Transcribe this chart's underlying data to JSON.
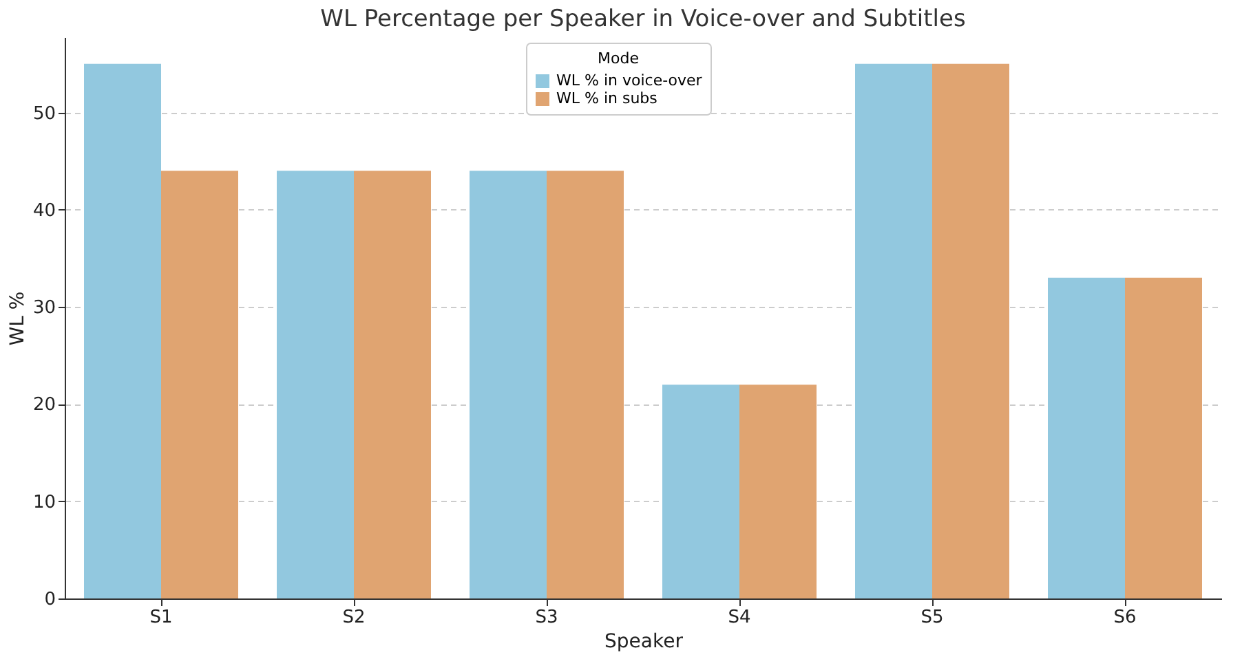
{
  "chart_data": {
    "type": "bar",
    "title": "WL Percentage per Speaker in Voice-over and Subtitles",
    "xlabel": "Speaker",
    "ylabel": "WL %",
    "legend_title": "Mode",
    "legend": "top",
    "grid": "y",
    "categories": [
      "S1",
      "S2",
      "S3",
      "S4",
      "S5",
      "S6"
    ],
    "series": [
      {
        "name": "WL % in voice-over",
        "color": "#92c8df",
        "values": [
          55,
          44,
          44,
          22,
          55,
          33
        ]
      },
      {
        "name": "WL % in subs",
        "color": "#e0a471",
        "values": [
          44,
          44,
          44,
          22,
          55,
          33
        ]
      }
    ],
    "ylim": [
      0,
      57.75
    ],
    "yticks": [
      0,
      10,
      20,
      30,
      40,
      50
    ]
  }
}
